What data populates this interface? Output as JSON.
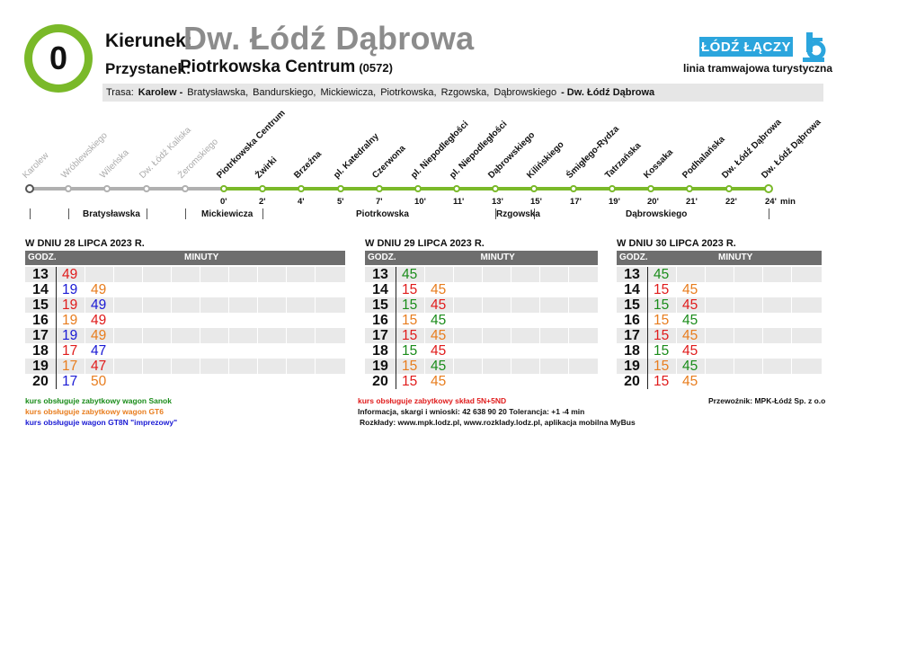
{
  "header": {
    "line": "0",
    "direction_label": "Kierunek:",
    "direction": "Dw. Łódź Dąbrowa",
    "stop_label": "Przystanek:",
    "stop": "Piotrkowska Centrum",
    "stop_code": "(0572)",
    "logo_text": "ŁÓDŹ ŁĄCZY",
    "line_type": "linia tramwajowa turystyczna",
    "route_label": "Trasa:",
    "route_start": "Karolew -",
    "route_streets": [
      "Bratysławska,",
      "Bandurskiego,",
      "Mickiewicza,",
      "Piotrkowska,",
      "Rzgowska,",
      "Dąbrowskiego"
    ],
    "route_end": "- Dw. Łódź Dąbrowa"
  },
  "diagram": {
    "stops": [
      {
        "name": "Karolew",
        "time": "",
        "past": true
      },
      {
        "name": "Wróblewskiego",
        "time": "",
        "past": true
      },
      {
        "name": "Wileńska",
        "time": "",
        "past": true
      },
      {
        "name": "Dw. Łódź Kaliska",
        "time": "",
        "past": true
      },
      {
        "name": "Żeromskiego",
        "time": "",
        "past": true
      },
      {
        "name": "Piotrkowska Centrum",
        "time": "0'",
        "past": false
      },
      {
        "name": "Żwirki",
        "time": "2'",
        "past": false
      },
      {
        "name": "Brzeźna",
        "time": "4'",
        "past": false
      },
      {
        "name": "pl. Katedralny",
        "time": "5'",
        "past": false
      },
      {
        "name": "Czerwona",
        "time": "7'",
        "past": false
      },
      {
        "name": "pl. Niepodległości",
        "time": "10'",
        "past": false
      },
      {
        "name": "pl. Niepodległości",
        "time": "11'",
        "past": false
      },
      {
        "name": "Dąbrowskiego",
        "time": "13'",
        "past": false
      },
      {
        "name": "Kilińskiego",
        "time": "15'",
        "past": false
      },
      {
        "name": "Śmigłego-Rydza",
        "time": "17'",
        "past": false
      },
      {
        "name": "Tatrzańska",
        "time": "19'",
        "past": false
      },
      {
        "name": "Kossaka",
        "time": "20'",
        "past": false
      },
      {
        "name": "Podhalańska",
        "time": "21'",
        "past": false
      },
      {
        "name": "Dw. Łódź Dąbrowa",
        "time": "22'",
        "past": false
      },
      {
        "name": "Dw. Łódź Dąbrowa",
        "time": "24'",
        "past": false
      }
    ],
    "unit": "min",
    "streets": [
      "Bratysławska",
      "Mickiewicza",
      "Piotrkowska",
      "Rzgowska",
      "Dąbrowskiego"
    ]
  },
  "colors": {
    "green": "#1a8c1a",
    "orange": "#e87d1e",
    "blue": "#1a1ad4",
    "red": "#e01b1b",
    "line_green": "#7ab929",
    "logo_blue": "#2ba5dd"
  },
  "timetables": [
    {
      "title": "W DNIU 28 LIPCA 2023 R.",
      "hour_header": "GODZ.",
      "minute_header": "MINUTY",
      "rows": [
        {
          "hour": "13",
          "minutes": [
            {
              "v": "49",
              "c": "red"
            }
          ]
        },
        {
          "hour": "14",
          "minutes": [
            {
              "v": "19",
              "c": "blue"
            },
            {
              "v": "49",
              "c": "orange"
            }
          ]
        },
        {
          "hour": "15",
          "minutes": [
            {
              "v": "19",
              "c": "red"
            },
            {
              "v": "49",
              "c": "blue"
            }
          ]
        },
        {
          "hour": "16",
          "minutes": [
            {
              "v": "19",
              "c": "orange"
            },
            {
              "v": "49",
              "c": "red"
            }
          ]
        },
        {
          "hour": "17",
          "minutes": [
            {
              "v": "19",
              "c": "blue"
            },
            {
              "v": "49",
              "c": "orange"
            }
          ]
        },
        {
          "hour": "18",
          "minutes": [
            {
              "v": "17",
              "c": "red"
            },
            {
              "v": "47",
              "c": "blue"
            }
          ]
        },
        {
          "hour": "19",
          "minutes": [
            {
              "v": "17",
              "c": "orange"
            },
            {
              "v": "47",
              "c": "red"
            }
          ]
        },
        {
          "hour": "20",
          "minutes": [
            {
              "v": "17",
              "c": "blue"
            },
            {
              "v": "50",
              "c": "orange"
            }
          ]
        }
      ]
    },
    {
      "title": "W DNIU 29 LIPCA 2023 R.",
      "hour_header": "GODZ.",
      "minute_header": "MINUTY",
      "rows": [
        {
          "hour": "13",
          "minutes": [
            {
              "v": "45",
              "c": "green"
            }
          ]
        },
        {
          "hour": "14",
          "minutes": [
            {
              "v": "15",
              "c": "red"
            },
            {
              "v": "45",
              "c": "orange"
            }
          ]
        },
        {
          "hour": "15",
          "minutes": [
            {
              "v": "15",
              "c": "green"
            },
            {
              "v": "45",
              "c": "red"
            }
          ]
        },
        {
          "hour": "16",
          "minutes": [
            {
              "v": "15",
              "c": "orange"
            },
            {
              "v": "45",
              "c": "green"
            }
          ]
        },
        {
          "hour": "17",
          "minutes": [
            {
              "v": "15",
              "c": "red"
            },
            {
              "v": "45",
              "c": "orange"
            }
          ]
        },
        {
          "hour": "18",
          "minutes": [
            {
              "v": "15",
              "c": "green"
            },
            {
              "v": "45",
              "c": "red"
            }
          ]
        },
        {
          "hour": "19",
          "minutes": [
            {
              "v": "15",
              "c": "orange"
            },
            {
              "v": "45",
              "c": "green"
            }
          ]
        },
        {
          "hour": "20",
          "minutes": [
            {
              "v": "15",
              "c": "red"
            },
            {
              "v": "45",
              "c": "orange"
            }
          ]
        }
      ]
    },
    {
      "title": "W DNIU 30 LIPCA 2023 R.",
      "hour_header": "GODZ.",
      "minute_header": "MINUTY",
      "rows": [
        {
          "hour": "13",
          "minutes": [
            {
              "v": "45",
              "c": "green"
            }
          ]
        },
        {
          "hour": "14",
          "minutes": [
            {
              "v": "15",
              "c": "red"
            },
            {
              "v": "45",
              "c": "orange"
            }
          ]
        },
        {
          "hour": "15",
          "minutes": [
            {
              "v": "15",
              "c": "green"
            },
            {
              "v": "45",
              "c": "red"
            }
          ]
        },
        {
          "hour": "16",
          "minutes": [
            {
              "v": "15",
              "c": "orange"
            },
            {
              "v": "45",
              "c": "green"
            }
          ]
        },
        {
          "hour": "17",
          "minutes": [
            {
              "v": "15",
              "c": "red"
            },
            {
              "v": "45",
              "c": "orange"
            }
          ]
        },
        {
          "hour": "18",
          "minutes": [
            {
              "v": "15",
              "c": "green"
            },
            {
              "v": "45",
              "c": "red"
            }
          ]
        },
        {
          "hour": "19",
          "minutes": [
            {
              "v": "15",
              "c": "orange"
            },
            {
              "v": "45",
              "c": "green"
            }
          ]
        },
        {
          "hour": "20",
          "minutes": [
            {
              "v": "15",
              "c": "red"
            },
            {
              "v": "45",
              "c": "orange"
            }
          ]
        }
      ]
    }
  ],
  "notes": {
    "legend": [
      {
        "text": "kurs obsługuje zabytkowy wagon Sanok",
        "c": "green"
      },
      {
        "text": "kurs obsługuje zabytkowy wagon GT6",
        "c": "orange"
      },
      {
        "text": "kurs obsługuje wagon GT8N \"imprezowy\"",
        "c": "blue"
      }
    ],
    "red_legend": "kurs obsługuje zabytkowy skład 5N+5ND",
    "info": "Informacja, skargi i wnioski: 42 638 90 20 Tolerancja: +1 -4 min",
    "schedules": "Rozkłady: www.mpk.lodz.pl, www.rozklady.lodz.pl, aplikacja mobilna MyBus",
    "carrier": "Przewoźnik: MPK-Łódź Sp. z o.o"
  }
}
